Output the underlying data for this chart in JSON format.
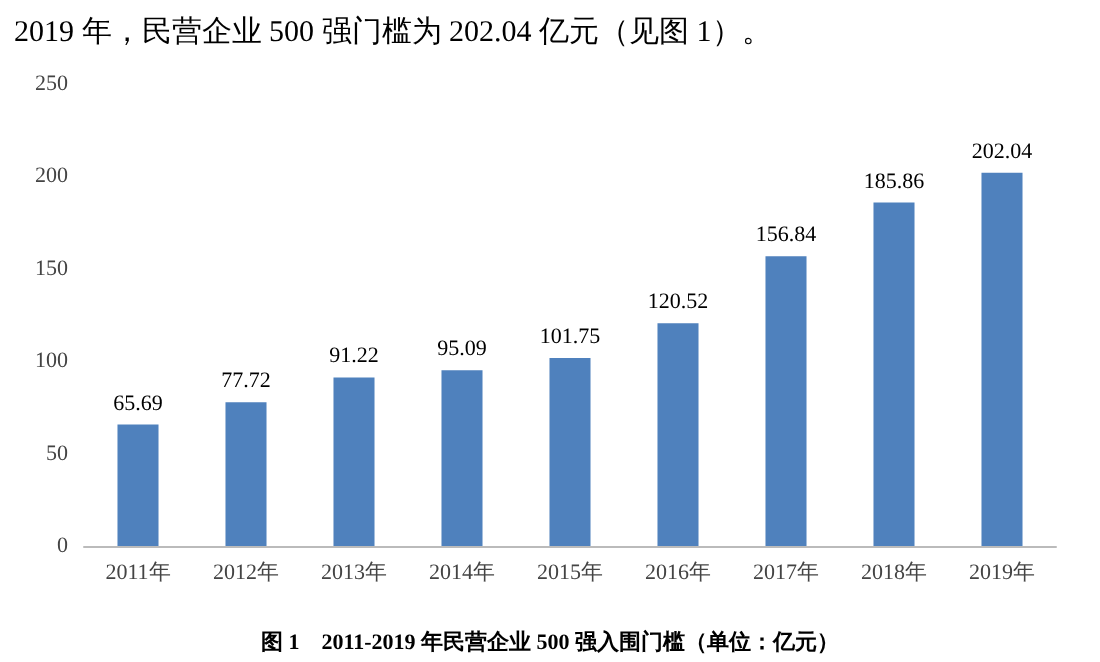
{
  "chart_data": {
    "type": "bar",
    "title": "2019 年，民营企业 500 强门槛为 202.04 亿元（见图 1）。",
    "annotations": [
      "图 1　2011-2019 年民营企业 500 强入围门槛（单位：亿元）"
    ],
    "categories": [
      "2011年",
      "2012年",
      "2013年",
      "2014年",
      "2015年",
      "2016年",
      "2017年",
      "2018年",
      "2019年"
    ],
    "values": [
      65.69,
      77.72,
      91.22,
      95.09,
      101.75,
      120.52,
      156.84,
      185.86,
      202.04
    ],
    "color": "#4f81bd",
    "ylim": [
      0,
      250
    ],
    "yticks": [
      0,
      50,
      100,
      150,
      200,
      250
    ],
    "data_labels": true,
    "grid": false
  }
}
